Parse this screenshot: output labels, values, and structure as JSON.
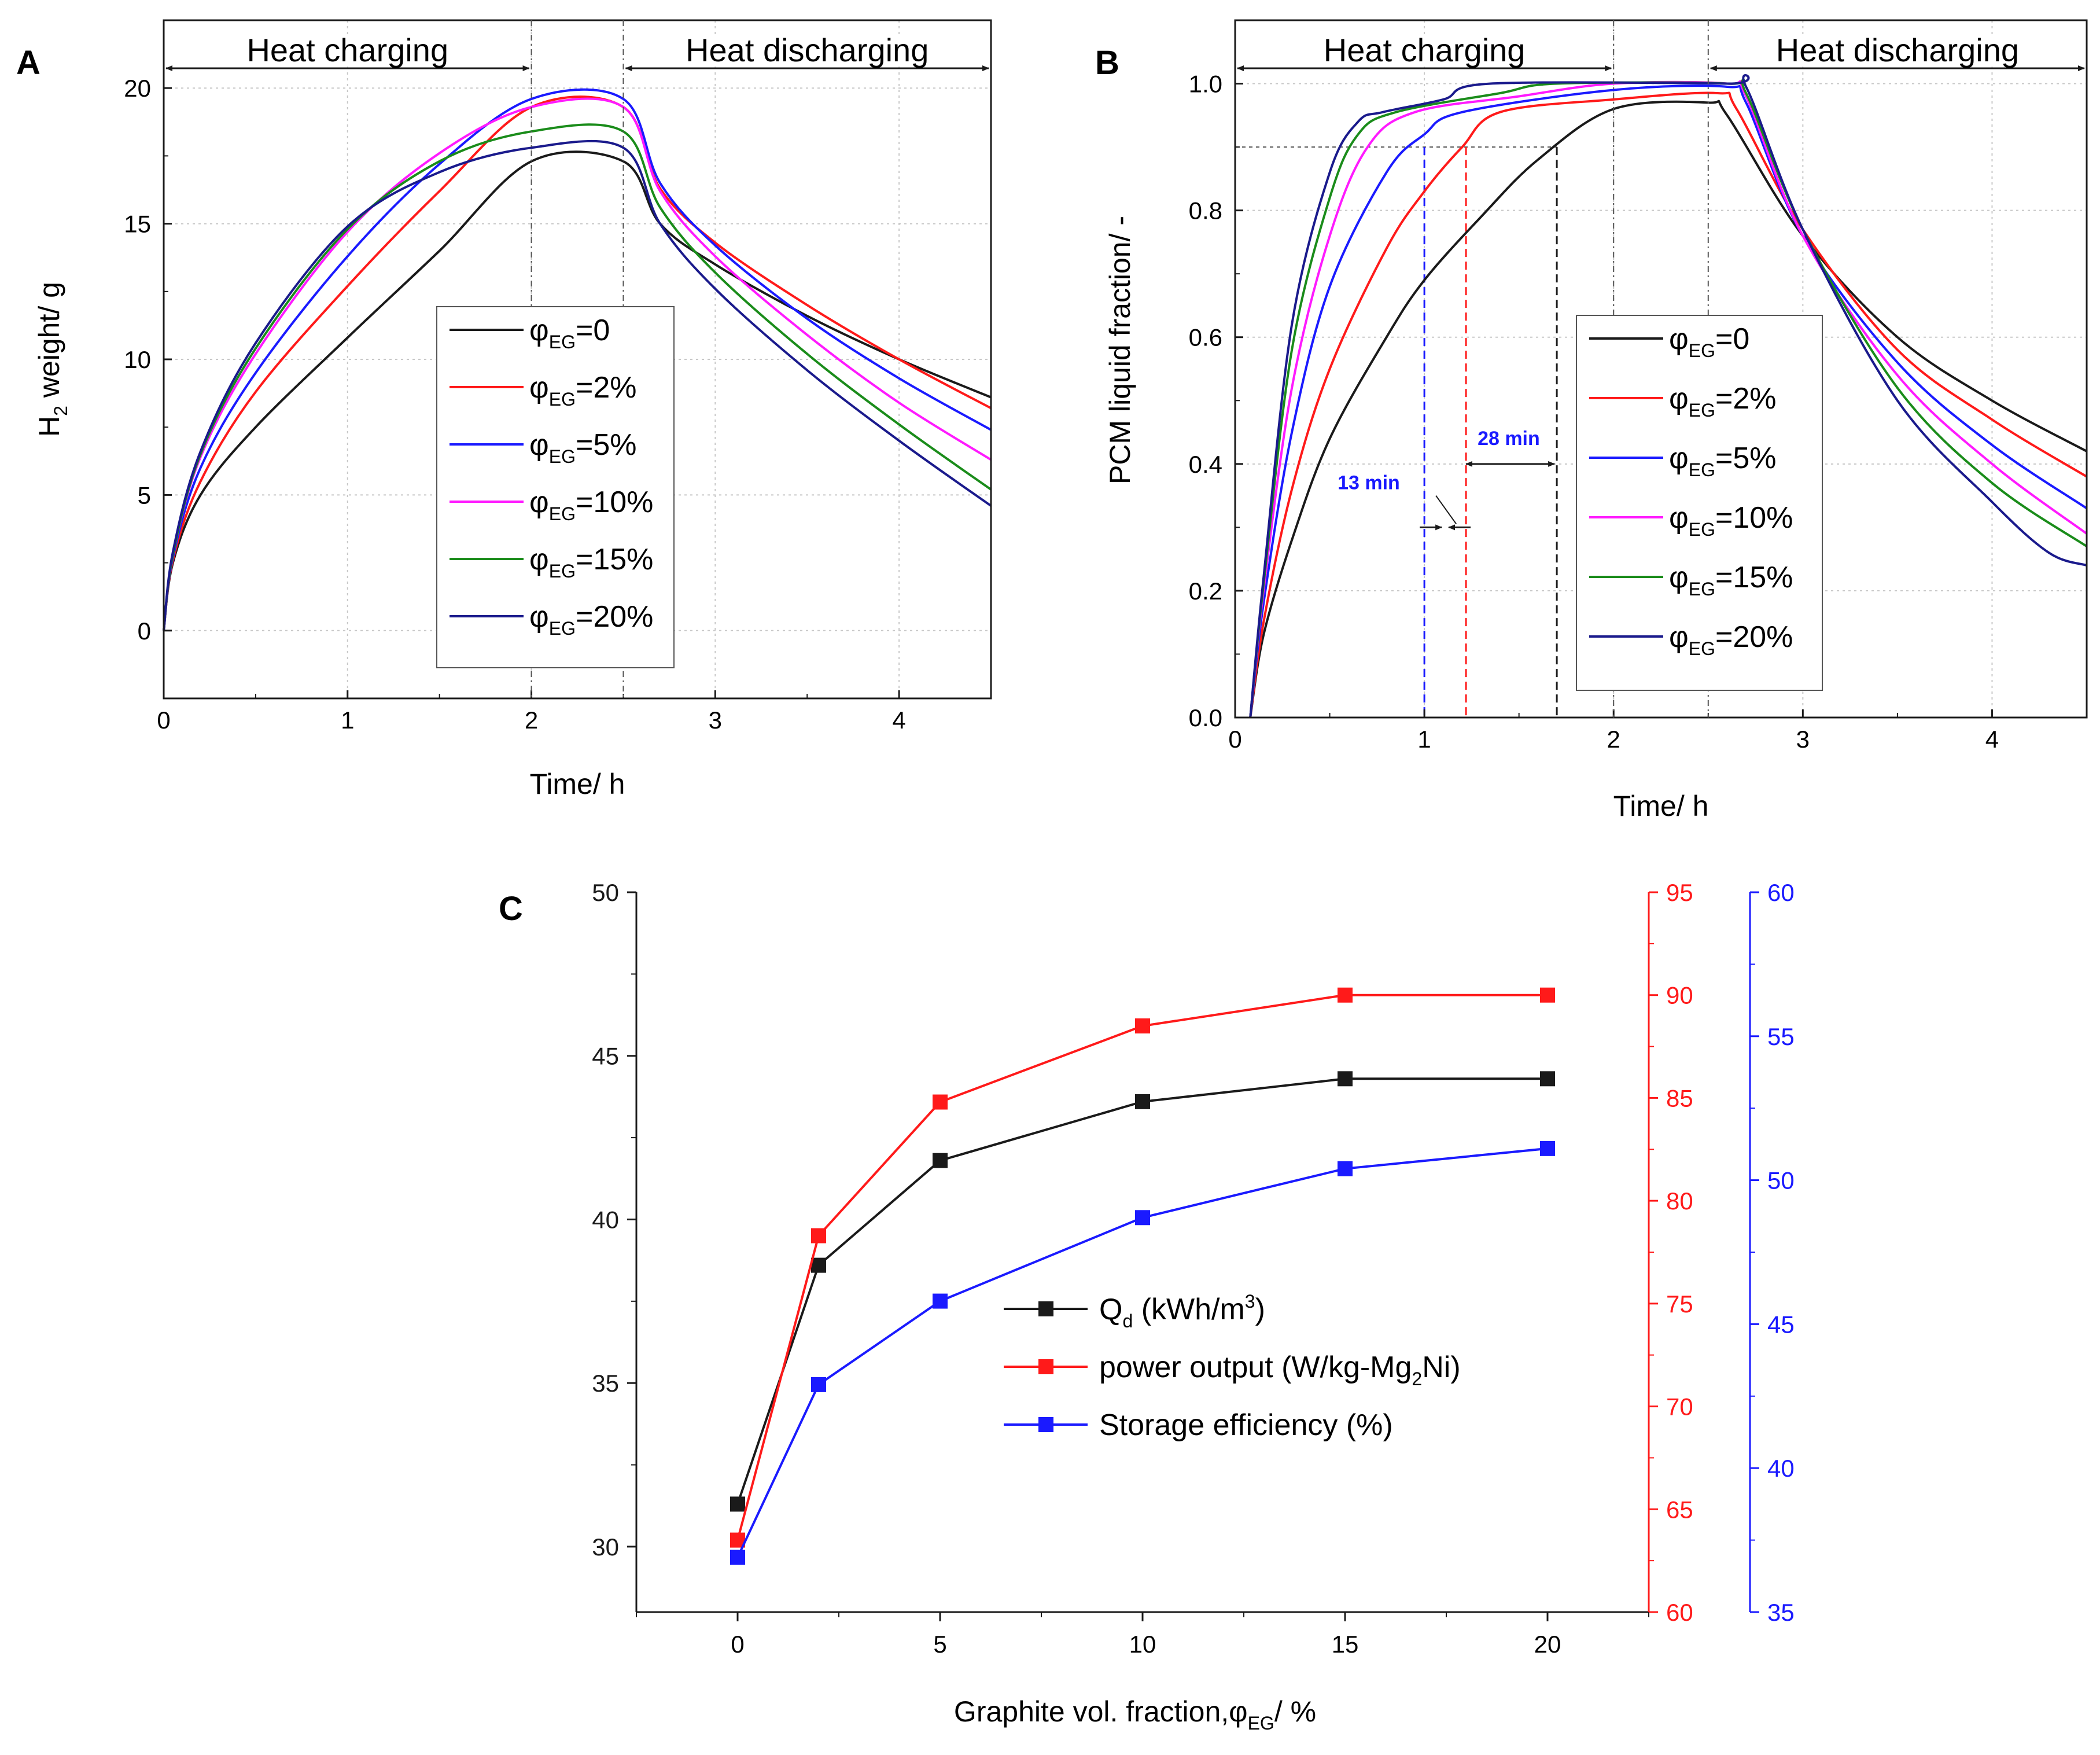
{
  "chart_data": [
    {
      "panel": "A",
      "type": "line",
      "xlabel": "Time/ h",
      "ylabel_main": "H",
      "ylabel_sub": "2",
      "ylabel_rest": " weight/ g",
      "xlim": [
        0,
        4.5
      ],
      "ylim": [
        -2.5,
        22.5
      ],
      "xticks": [
        "0",
        "1",
        "2",
        "3",
        "4"
      ],
      "yticks": [
        "0",
        "5",
        "10",
        "15",
        "20"
      ],
      "regions": {
        "charging": "Heat charging",
        "discharging": "Heat discharging",
        "boundary_times": [
          2,
          2.5
        ]
      },
      "series": [
        {
          "name": "φEG=0",
          "label_pre": "φ",
          "label_sub": "EG",
          "label_post": "=0",
          "color": "#1a1a1a",
          "x": [
            0,
            0.05,
            0.2,
            0.5,
            1.0,
            1.5,
            2.0,
            2.5,
            2.7,
            3.0,
            3.5,
            4.0,
            4.5
          ],
          "y": [
            0,
            2.5,
            5.0,
            7.5,
            10.8,
            14.0,
            17.3,
            17.3,
            15.0,
            13.5,
            11.6,
            10.0,
            8.6
          ]
        },
        {
          "name": "φEG=2%",
          "label_pre": "φ",
          "label_sub": "EG",
          "label_post": "=2%",
          "color": "#ff1a1a",
          "x": [
            0,
            0.05,
            0.2,
            0.5,
            1.0,
            1.5,
            2.0,
            2.5,
            2.7,
            3.0,
            3.5,
            4.0,
            4.5
          ],
          "y": [
            0,
            2.6,
            5.5,
            8.8,
            12.7,
            16.2,
            19.3,
            19.3,
            16.3,
            14.3,
            12.0,
            10.0,
            8.2
          ]
        },
        {
          "name": "φEG=5%",
          "label_pre": "φ",
          "label_sub": "EG",
          "label_post": "=5%",
          "color": "#1a1aff",
          "x": [
            0,
            0.05,
            0.2,
            0.5,
            1.0,
            1.5,
            2.0,
            2.5,
            2.7,
            3.0,
            3.5,
            4.0,
            4.5
          ],
          "y": [
            0,
            2.7,
            6.0,
            9.5,
            13.8,
            17.2,
            19.6,
            19.6,
            16.5,
            14.2,
            11.5,
            9.3,
            7.4
          ]
        },
        {
          "name": "φEG=10%",
          "label_pre": "φ",
          "label_sub": "EG",
          "label_post": "=10%",
          "color": "#ff1aff",
          "x": [
            0,
            0.05,
            0.2,
            0.5,
            1.0,
            1.5,
            2.0,
            2.5,
            2.7,
            3.0,
            3.5,
            4.0,
            4.5
          ],
          "y": [
            0,
            2.8,
            6.4,
            10.2,
            14.7,
            17.6,
            19.3,
            19.3,
            16.2,
            13.8,
            10.9,
            8.4,
            6.3
          ]
        },
        {
          "name": "φEG=15%",
          "label_pre": "φ",
          "label_sub": "EG",
          "label_post": "=15%",
          "color": "#1a8c1a",
          "x": [
            0,
            0.05,
            0.2,
            0.5,
            1.0,
            1.5,
            2.0,
            2.5,
            2.7,
            3.0,
            3.5,
            4.0,
            4.5
          ],
          "y": [
            0,
            2.8,
            6.5,
            10.4,
            14.8,
            17.3,
            18.4,
            18.4,
            15.6,
            13.2,
            10.2,
            7.6,
            5.2
          ]
        },
        {
          "name": "φEG=20%",
          "label_pre": "φ",
          "label_sub": "EG",
          "label_post": "=20%",
          "color": "#1a1a8c",
          "x": [
            0,
            0.05,
            0.2,
            0.5,
            1.0,
            1.5,
            2.0,
            2.5,
            2.7,
            3.0,
            3.5,
            4.0,
            4.5
          ],
          "y": [
            0,
            2.9,
            6.6,
            10.6,
            14.9,
            16.9,
            17.8,
            17.8,
            15.0,
            12.6,
            9.6,
            7.0,
            4.6
          ]
        }
      ]
    },
    {
      "panel": "B",
      "type": "line",
      "xlabel": "Time/ h",
      "ylabel": "PCM liquid fraction/ -",
      "xlim": [
        0,
        4.5
      ],
      "ylim": [
        0,
        1.1
      ],
      "xticks": [
        "0",
        "1",
        "2",
        "3",
        "4"
      ],
      "yticks": [
        "0.0",
        "0.2",
        "0.4",
        "0.6",
        "0.8",
        "1.0"
      ],
      "regions": {
        "charging": "Heat charging",
        "discharging": "Heat discharging",
        "boundary_times": [
          2,
          2.5
        ]
      },
      "reference_level": 0.9,
      "annotations": [
        {
          "text": "13 min",
          "color": "#1a1aff",
          "x_from": 1.0,
          "x_to": 1.22
        },
        {
          "text": "28 min",
          "color": "#1a1aff",
          "x_from": 1.22,
          "x_to": 1.7
        }
      ],
      "guide_lines": [
        {
          "x": 1.0,
          "color": "#1a1aff"
        },
        {
          "x": 1.22,
          "color": "#ff1a1a"
        },
        {
          "x": 1.7,
          "color": "#1a1a1a"
        }
      ],
      "series": [
        {
          "name": "φEG=0",
          "label_pre": "φ",
          "label_sub": "EG",
          "label_post": "=0",
          "color": "#1a1a1a",
          "x": [
            0.08,
            0.15,
            0.3,
            0.5,
            0.8,
            1.0,
            1.3,
            1.6,
            2.0,
            2.5,
            2.6,
            3.0,
            3.5,
            4.0,
            4.5
          ],
          "y": [
            0,
            0.13,
            0.28,
            0.44,
            0.6,
            0.69,
            0.79,
            0.88,
            0.96,
            0.97,
            0.95,
            0.76,
            0.6,
            0.5,
            0.42
          ]
        },
        {
          "name": "φEG=2%",
          "label_pre": "φ",
          "label_sub": "EG",
          "label_post": "=2%",
          "color": "#ff1a1a",
          "x": [
            0.08,
            0.15,
            0.3,
            0.5,
            0.8,
            1.0,
            1.2,
            1.4,
            2.0,
            2.55,
            2.65,
            3.0,
            3.5,
            4.0,
            4.5
          ],
          "y": [
            0,
            0.15,
            0.36,
            0.55,
            0.74,
            0.83,
            0.9,
            0.955,
            0.975,
            0.985,
            0.96,
            0.77,
            0.58,
            0.47,
            0.38
          ]
        },
        {
          "name": "φEG=5%",
          "label_pre": "φ",
          "label_sub": "EG",
          "label_post": "=5%",
          "color": "#1a1aff",
          "x": [
            0.08,
            0.15,
            0.3,
            0.5,
            0.8,
            1.0,
            1.2,
            2.0,
            2.6,
            2.7,
            3.0,
            3.5,
            4.0,
            4.5
          ],
          "y": [
            0,
            0.18,
            0.45,
            0.68,
            0.86,
            0.92,
            0.955,
            0.99,
            0.995,
            0.97,
            0.76,
            0.56,
            0.43,
            0.33
          ]
        },
        {
          "name": "φEG=10%",
          "label_pre": "φ",
          "label_sub": "EG",
          "label_post": "=10%",
          "color": "#ff1aff",
          "x": [
            0.08,
            0.15,
            0.3,
            0.5,
            0.7,
            0.95,
            1.5,
            2.0,
            2.6,
            2.7,
            3.0,
            3.5,
            4.0,
            4.5
          ],
          "y": [
            0,
            0.2,
            0.52,
            0.76,
            0.9,
            0.955,
            0.98,
            1.0,
            1.0,
            0.98,
            0.76,
            0.54,
            0.4,
            0.29
          ]
        },
        {
          "name": "φEG=15%",
          "label_pre": "φ",
          "label_sub": "EG",
          "label_post": "=15%",
          "color": "#1a8c1a",
          "x": [
            0.08,
            0.15,
            0.3,
            0.5,
            0.65,
            0.85,
            1.4,
            1.7,
            2.6,
            2.7,
            3.0,
            3.5,
            4.0,
            4.5
          ],
          "y": [
            0,
            0.21,
            0.58,
            0.82,
            0.92,
            0.955,
            0.985,
            1.0,
            1.0,
            0.985,
            0.77,
            0.52,
            0.37,
            0.27
          ]
        },
        {
          "name": "φEG=20%",
          "label_pre": "φ",
          "label_sub": "EG",
          "label_post": "=20%",
          "color": "#1a1a8c",
          "x": [
            0.08,
            0.15,
            0.3,
            0.5,
            0.65,
            0.78,
            1.1,
            1.35,
            2.6,
            2.7,
            3.0,
            3.5,
            4.0,
            4.3,
            4.5
          ],
          "y": [
            0,
            0.22,
            0.62,
            0.86,
            0.94,
            0.955,
            0.975,
            1.0,
            1.0,
            0.995,
            0.77,
            0.5,
            0.34,
            0.26,
            0.24
          ]
        }
      ]
    },
    {
      "panel": "C",
      "type": "line",
      "xlabel_pre": "Graphite vol. fraction,φ",
      "xlabel_sub": "EG",
      "xlabel_post": "/ %",
      "categories": [
        0,
        2,
        5,
        10,
        15,
        20
      ],
      "xlim": [
        -2.5,
        22.5
      ],
      "xticks": [
        "0",
        "5",
        "10",
        "15",
        "20"
      ],
      "axes": [
        {
          "side": "left",
          "color": "#1a1a1a",
          "ylim": [
            28,
            50
          ],
          "ticks": [
            "30",
            "35",
            "40",
            "45",
            "50"
          ]
        },
        {
          "side": "right-1",
          "color": "#ff1a1a",
          "ylim": [
            60,
            95
          ],
          "ticks": [
            "60",
            "65",
            "70",
            "75",
            "80",
            "85",
            "90",
            "95"
          ]
        },
        {
          "side": "right-2",
          "color": "#1a1aff",
          "ylim": [
            35,
            60
          ],
          "ticks": [
            "35",
            "40",
            "45",
            "50",
            "55",
            "60"
          ]
        }
      ],
      "series": [
        {
          "name": "Qd (kWh/m3)",
          "axis": 0,
          "color": "#1a1a1a",
          "values": [
            31.3,
            38.6,
            41.8,
            43.6,
            44.3,
            44.3
          ],
          "label_parts": {
            "pre": "Q",
            "sub": "d",
            "mid": " (kWh/m",
            "sup": "3",
            "post": ")"
          }
        },
        {
          "name": "power output (W/kg-Mg2Ni)",
          "axis": 1,
          "color": "#ff1a1a",
          "values": [
            63.5,
            78.3,
            84.8,
            88.5,
            90.0,
            90.0
          ],
          "label_parts": {
            "pre": "power output (W/kg-Mg",
            "sub": "2",
            "post": "Ni)"
          }
        },
        {
          "name": "Storage efficiency (%)",
          "axis": 2,
          "color": "#1a1aff",
          "values": [
            36.9,
            42.9,
            45.8,
            48.7,
            50.4,
            51.1
          ],
          "label_parts": {
            "pre": "Storage efficiency (%)"
          }
        }
      ]
    }
  ],
  "panel_labels": {
    "a": "A",
    "b": "B",
    "c": "C"
  }
}
